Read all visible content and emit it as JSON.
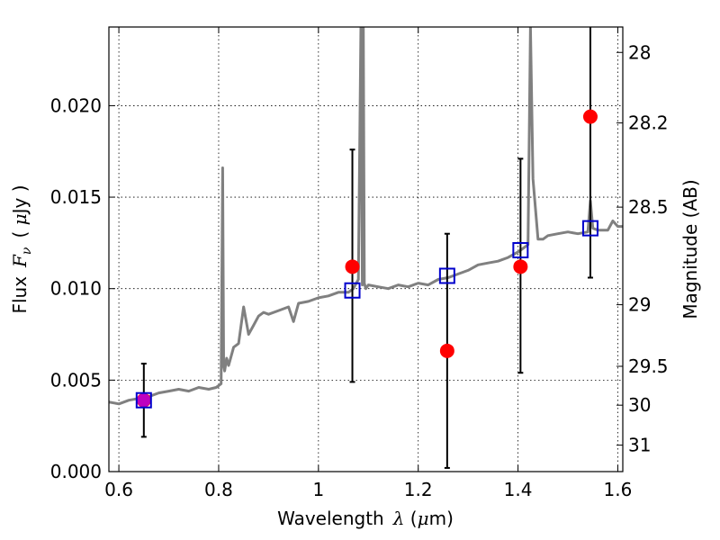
{
  "chart_data": {
    "type": "scatter",
    "xlabel_prefix": "Wavelength",
    "xlabel_symbol": "λ",
    "xlabel_unit_open": " (",
    "xlabel_unit_symbol": "μ",
    "xlabel_unit_rest": "m)",
    "ylabel_prefix": "Flux",
    "ylabel_symbol": "F",
    "ylabel_subscript": "ν",
    "ylabel_unit_open": "( ",
    "ylabel_unit_symbol": "μ",
    "ylabel_unit_rest": "Jy )",
    "y2label": "Magnitude (AB)",
    "xlim": [
      0.58,
      1.61
    ],
    "ylim": [
      0.0,
      0.0243
    ],
    "grid": true,
    "x_ticks": [
      {
        "value": 0.6,
        "label": "0.6"
      },
      {
        "value": 0.8,
        "label": "0.8"
      },
      {
        "value": 1.0,
        "label": "1"
      },
      {
        "value": 1.2,
        "label": "1.2"
      },
      {
        "value": 1.4,
        "label": "1.4"
      },
      {
        "value": 1.6,
        "label": "1.6"
      }
    ],
    "y_ticks": [
      {
        "value": 0.0,
        "label": "0.000"
      },
      {
        "value": 0.005,
        "label": "0.005"
      },
      {
        "value": 0.01,
        "label": "0.010"
      },
      {
        "value": 0.015,
        "label": "0.015"
      },
      {
        "value": 0.02,
        "label": "0.020"
      }
    ],
    "y2_ticks": [
      {
        "value": 28.0,
        "label": "28"
      },
      {
        "value": 28.2,
        "label": "28.2"
      },
      {
        "value": 28.5,
        "label": "28.5"
      },
      {
        "value": 29.0,
        "label": "29"
      },
      {
        "value": 29.5,
        "label": "29.5"
      },
      {
        "value": 30.0,
        "label": "30"
      },
      {
        "value": 31.0,
        "label": "31"
      }
    ],
    "model_spectrum": {
      "color": "#808080",
      "x": [
        0.58,
        0.6,
        0.62,
        0.64,
        0.66,
        0.68,
        0.7,
        0.72,
        0.74,
        0.76,
        0.78,
        0.795,
        0.805,
        0.808,
        0.81,
        0.812,
        0.816,
        0.82,
        0.83,
        0.84,
        0.85,
        0.86,
        0.87,
        0.88,
        0.89,
        0.9,
        0.92,
        0.94,
        0.95,
        0.96,
        0.98,
        1.0,
        1.02,
        1.04,
        1.06,
        1.07,
        1.08,
        1.085,
        1.088,
        1.09,
        1.092,
        1.095,
        1.1,
        1.12,
        1.14,
        1.16,
        1.18,
        1.2,
        1.22,
        1.24,
        1.26,
        1.28,
        1.3,
        1.32,
        1.34,
        1.36,
        1.38,
        1.4,
        1.41,
        1.42,
        1.425,
        1.43,
        1.44,
        1.45,
        1.46,
        1.48,
        1.5,
        1.52,
        1.54,
        1.545,
        1.55,
        1.56,
        1.58,
        1.59,
        1.6,
        1.61
      ],
      "y": [
        0.0038,
        0.0037,
        0.0039,
        0.004,
        0.0041,
        0.0043,
        0.0044,
        0.0045,
        0.0044,
        0.0046,
        0.0045,
        0.0046,
        0.0048,
        0.0166,
        0.0058,
        0.0055,
        0.0062,
        0.0058,
        0.0068,
        0.007,
        0.009,
        0.0075,
        0.008,
        0.0085,
        0.0087,
        0.0086,
        0.0088,
        0.009,
        0.0082,
        0.0092,
        0.0093,
        0.0095,
        0.0096,
        0.0098,
        0.0098,
        0.01,
        0.0105,
        0.0243,
        0.0102,
        0.0243,
        0.0103,
        0.01,
        0.0102,
        0.0101,
        0.01,
        0.0102,
        0.0101,
        0.0103,
        0.0102,
        0.0105,
        0.0106,
        0.0108,
        0.011,
        0.0113,
        0.0114,
        0.0115,
        0.0117,
        0.012,
        0.0122,
        0.0124,
        0.0243,
        0.016,
        0.0127,
        0.0127,
        0.0129,
        0.013,
        0.0131,
        0.013,
        0.0131,
        0.0148,
        0.0133,
        0.0132,
        0.0132,
        0.0137,
        0.0134,
        0.0134
      ]
    },
    "series": [
      {
        "marker": "circle",
        "color": "#ff0000",
        "points": [
          {
            "x": 0.65,
            "y": 0.0039,
            "y_low": 0.0019,
            "y_high": 0.0059
          },
          {
            "x": 1.068,
            "y": 0.0112,
            "y_low": 0.0049,
            "y_high": 0.0176
          },
          {
            "x": 1.258,
            "y": 0.0066,
            "y_low": 0.0002,
            "y_high": 0.013
          },
          {
            "x": 1.405,
            "y": 0.0112,
            "y_low": 0.0054,
            "y_high": 0.0171
          },
          {
            "x": 1.545,
            "y": 0.0194,
            "y_low": 0.0106,
            "y_high": 0.0243
          }
        ]
      },
      {
        "marker": "open-square",
        "color": "#0000cc",
        "points": [
          {
            "x": 0.65,
            "y": 0.0039
          },
          {
            "x": 1.068,
            "y": 0.0099
          },
          {
            "x": 1.258,
            "y": 0.0107
          },
          {
            "x": 1.405,
            "y": 0.0121
          },
          {
            "x": 1.545,
            "y": 0.0133
          }
        ]
      }
    ],
    "overlap_marker": {
      "x": 0.65,
      "y": 0.0039,
      "color": "#bf00bf"
    },
    "errorbar_color": "#000000"
  }
}
